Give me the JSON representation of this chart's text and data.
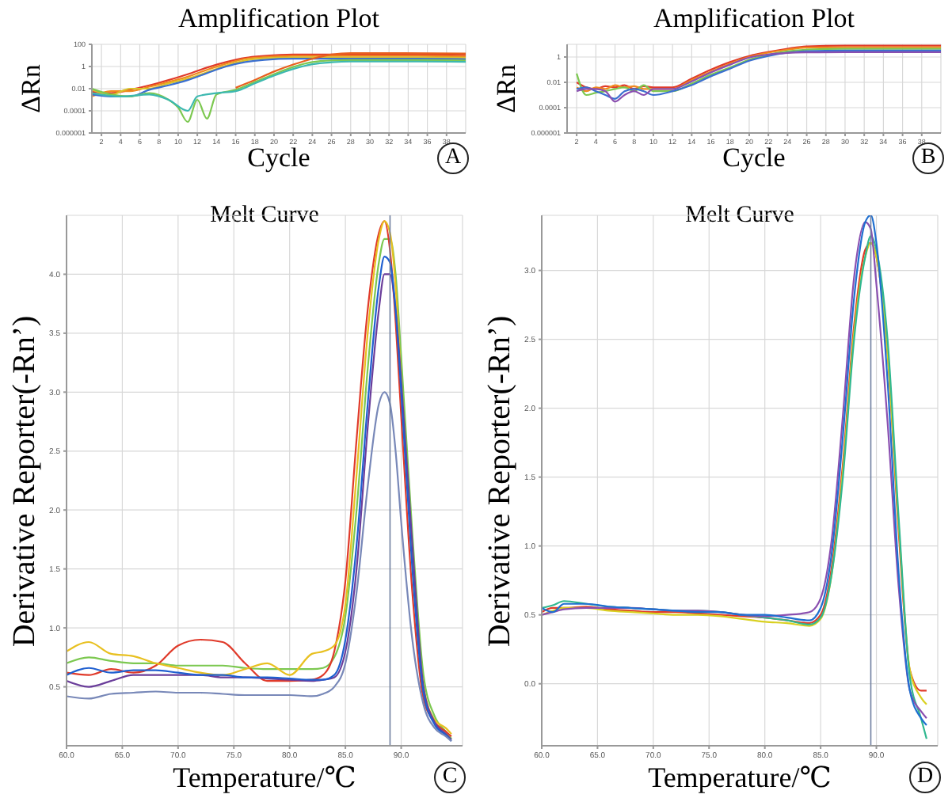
{
  "chart_data": [
    {
      "type": "line",
      "title": "Amplification Plot",
      "xlabel": "Cycle",
      "ylabel": "ΔRn",
      "annotations": [
        "A"
      ],
      "log": "y",
      "grid": true,
      "xlim": [
        1,
        40
      ],
      "xticks": [
        2,
        4,
        6,
        8,
        10,
        12,
        14,
        16,
        18,
        20,
        22,
        24,
        26,
        28,
        30,
        32,
        34,
        36,
        38
      ],
      "ylim": [
        1e-06,
        100
      ],
      "yticks": [
        {
          "value": 1e-06,
          "label": "0.000001"
        },
        0.0001,
        0.01,
        1,
        100
      ],
      "series": [
        {
          "color": "#e03a2a",
          "x": [
            1,
            3,
            5,
            7,
            9,
            11,
            13,
            15,
            17,
            19,
            22,
            26,
            30,
            35,
            40
          ],
          "values": [
            0.005,
            0.004,
            0.008,
            0.02,
            0.06,
            0.2,
            0.8,
            2.5,
            6,
            9,
            12,
            12,
            12,
            12,
            11
          ]
        },
        {
          "color": "#f08a1e",
          "x": [
            1,
            3,
            5,
            7,
            9,
            11,
            13,
            15,
            17,
            19,
            22,
            26,
            30,
            35,
            40
          ],
          "values": [
            0.002,
            0.006,
            0.006,
            0.015,
            0.04,
            0.12,
            0.5,
            1.8,
            5,
            7,
            9,
            9,
            9,
            9,
            8
          ]
        },
        {
          "color": "#d9c22a",
          "x": [
            1,
            3,
            5,
            7,
            9,
            11,
            13,
            15,
            17,
            19,
            22,
            26,
            30,
            35,
            40
          ],
          "values": [
            0.008,
            0.003,
            0.01,
            0.01,
            0.03,
            0.08,
            0.3,
            1.2,
            3.5,
            5.5,
            6.5,
            6.5,
            6.5,
            6.5,
            6
          ]
        },
        {
          "color": "#3a6fd0",
          "x": [
            1,
            3,
            5,
            7,
            9,
            11,
            13,
            15,
            17,
            19,
            22,
            26,
            30,
            35,
            40
          ],
          "values": [
            0.003,
            0.002,
            0.002,
            0.008,
            0.02,
            0.06,
            0.25,
            1,
            2.5,
            4,
            5,
            5,
            5,
            5,
            4.5
          ]
        },
        {
          "color": "#7cc850",
          "x": [
            1,
            3,
            5,
            7,
            9,
            10,
            11,
            12,
            13,
            14,
            16,
            18,
            20,
            22,
            24,
            26,
            28,
            32,
            36,
            40
          ],
          "values": [
            0.01,
            0.003,
            0.002,
            0.004,
            0.001,
            0.0002,
            1e-05,
            0.001,
            2e-05,
            0.003,
            0.008,
            0.04,
            0.2,
            0.9,
            2.5,
            3.5,
            3.8,
            3.8,
            3.8,
            3.5
          ]
        },
        {
          "color": "#3cb8b0",
          "x": [
            1,
            4,
            7,
            9,
            11,
            12,
            14,
            16,
            18,
            20,
            22,
            24,
            26,
            28,
            30,
            35,
            40
          ],
          "values": [
            0.004,
            0.002,
            0.003,
            0.001,
            0.0001,
            0.002,
            0.004,
            0.006,
            0.03,
            0.15,
            0.6,
            1.6,
            2.4,
            2.8,
            2.8,
            2.8,
            2.6
          ]
        },
        {
          "color": "#e8601e",
          "x": [
            16,
            18,
            20,
            22,
            24,
            26,
            28,
            32,
            40
          ],
          "values": [
            0.012,
            0.06,
            0.35,
            1.5,
            5,
            12,
            16,
            16,
            15
          ]
        }
      ]
    },
    {
      "type": "line",
      "title": "Amplification Plot",
      "xlabel": "Cycle",
      "ylabel": "ΔRn",
      "annotations": [
        "B"
      ],
      "log": "y",
      "grid": true,
      "xlim": [
        1,
        40
      ],
      "xticks": [
        2,
        4,
        6,
        8,
        10,
        12,
        14,
        16,
        18,
        20,
        22,
        24,
        26,
        28,
        30,
        32,
        34,
        36,
        38
      ],
      "ylim": [
        1e-06,
        10
      ],
      "yticks": [
        {
          "value": 1e-06,
          "label": "0.000001"
        },
        0.0001,
        0.01,
        1
      ],
      "x": [
        2,
        3,
        4,
        5,
        6,
        7,
        8,
        9,
        10,
        12,
        14,
        16,
        18,
        20,
        22,
        24,
        26,
        30,
        35,
        40
      ],
      "series": [
        {
          "color": "#e03a2a",
          "values": [
            0.01,
            0.004,
            0.003,
            0.005,
            0.004,
            0.006,
            0.003,
            0.005,
            0.004,
            0.004,
            0.02,
            0.1,
            0.4,
            1.2,
            2.5,
            4.5,
            7,
            8,
            8,
            8
          ]
        },
        {
          "color": "#f08a1e",
          "values": [
            0.004,
            0.002,
            0.004,
            0.003,
            0.006,
            0.004,
            0.005,
            0.003,
            0.003,
            0.003,
            0.015,
            0.07,
            0.3,
            1,
            2.2,
            3.8,
            5.5,
            6,
            6,
            6
          ]
        },
        {
          "color": "#7cc850",
          "values": [
            0.05,
            0.001,
            0.0015,
            0.002,
            0.003,
            0.004,
            0.002,
            0.006,
            0.002,
            0.002,
            0.008,
            0.04,
            0.15,
            0.6,
            1.5,
            2.8,
            3.8,
            4.4,
            4.4,
            4.4
          ]
        },
        {
          "color": "#3a6fd0",
          "values": [
            0.003,
            0.004,
            0.002,
            0.001,
            0.0005,
            0.002,
            0.003,
            0.002,
            0.001,
            0.002,
            0.006,
            0.03,
            0.12,
            0.5,
            1.2,
            2.2,
            2.9,
            3.2,
            3.2,
            3.2
          ]
        },
        {
          "color": "#8a4fb0",
          "values": [
            0.002,
            0.003,
            0.003,
            0.002,
            0.0003,
            0.001,
            0.002,
            0.001,
            0.003,
            0.003,
            0.012,
            0.06,
            0.25,
            0.9,
            1.6,
            2.1,
            2.3,
            2.4,
            2.4,
            2.4
          ]
        }
      ]
    },
    {
      "type": "line",
      "title": "Melt Curve",
      "xlabel": "Temperature/℃",
      "ylabel": "Derivative Reporter(-Rn’)",
      "annotations": [
        "C"
      ],
      "grid": true,
      "xlim": [
        60,
        95.5
      ],
      "xticks": [
        {
          "value": 60,
          "label": "60.0"
        },
        {
          "value": 65,
          "label": "65.0"
        },
        {
          "value": 70,
          "label": "70.0"
        },
        {
          "value": 75,
          "label": "75.0"
        },
        {
          "value": 80,
          "label": "80.0"
        },
        {
          "value": 85,
          "label": "85.0"
        },
        {
          "value": 90,
          "label": "90.0"
        }
      ],
      "ylim": [
        0,
        4.5
      ],
      "yticks": [
        {
          "value": 0.5,
          "label": "0.5"
        },
        {
          "value": 1,
          "label": "1.0"
        },
        {
          "value": 1.5,
          "label": "1.5"
        },
        {
          "value": 2,
          "label": "2.0"
        },
        {
          "value": 2.5,
          "label": "2.5"
        },
        {
          "value": 3,
          "label": "3.0"
        },
        {
          "value": 3.5,
          "label": "3.5"
        },
        {
          "value": 4,
          "label": "4.0"
        }
      ],
      "ref_lines": [
        {
          "axis": "x",
          "value": 89,
          "color": "#7080a0"
        }
      ],
      "x": [
        60,
        62,
        64,
        66,
        68,
        70,
        72,
        74,
        76,
        78,
        80,
        82,
        83,
        84,
        85,
        86,
        87,
        88,
        88.5,
        89,
        89.5,
        90,
        91,
        92,
        93,
        94,
        94.5
      ],
      "series": [
        {
          "color": "#7cc850",
          "values": [
            0.7,
            0.75,
            0.72,
            0.7,
            0.7,
            0.68,
            0.68,
            0.68,
            0.66,
            0.65,
            0.65,
            0.65,
            0.66,
            0.75,
            1.1,
            2.0,
            3.2,
            4.1,
            4.3,
            4.3,
            4.0,
            3.3,
            1.8,
            0.6,
            0.25,
            0.12,
            0.06
          ]
        },
        {
          "color": "#e03a2a",
          "values": [
            0.62,
            0.6,
            0.65,
            0.62,
            0.68,
            0.85,
            0.9,
            0.88,
            0.7,
            0.55,
            0.55,
            0.56,
            0.6,
            0.8,
            1.4,
            2.6,
            3.7,
            4.35,
            4.45,
            4.2,
            3.6,
            2.8,
            1.3,
            0.4,
            0.2,
            0.12,
            0.08
          ]
        },
        {
          "color": "#e8c020",
          "values": [
            0.8,
            0.88,
            0.78,
            0.76,
            0.7,
            0.66,
            0.62,
            0.6,
            0.65,
            0.7,
            0.6,
            0.78,
            0.8,
            0.85,
            1.2,
            2.3,
            3.5,
            4.3,
            4.45,
            4.35,
            3.9,
            3.1,
            1.6,
            0.5,
            0.22,
            0.15,
            0.1
          ]
        },
        {
          "color": "#6a3d9a",
          "values": [
            0.55,
            0.5,
            0.55,
            0.6,
            0.6,
            0.6,
            0.6,
            0.58,
            0.58,
            0.57,
            0.56,
            0.55,
            0.56,
            0.58,
            0.8,
            1.5,
            2.7,
            3.7,
            4.0,
            4.0,
            3.7,
            3.1,
            1.7,
            0.5,
            0.2,
            0.1,
            0.05
          ]
        },
        {
          "color": "#1f5fd0",
          "values": [
            0.6,
            0.66,
            0.62,
            0.64,
            0.64,
            0.62,
            0.6,
            0.6,
            0.58,
            0.58,
            0.57,
            0.56,
            0.56,
            0.6,
            0.9,
            1.7,
            2.9,
            3.9,
            4.15,
            4.1,
            3.7,
            3.0,
            1.5,
            0.45,
            0.18,
            0.09,
            0.04
          ]
        },
        {
          "color": "#7888b8",
          "values": [
            0.42,
            0.4,
            0.44,
            0.45,
            0.46,
            0.45,
            0.45,
            0.44,
            0.43,
            0.43,
            0.43,
            0.42,
            0.44,
            0.5,
            0.7,
            1.3,
            2.2,
            2.9,
            3.0,
            2.9,
            2.5,
            1.9,
            0.9,
            0.35,
            0.15,
            0.08,
            0.04
          ]
        }
      ]
    },
    {
      "type": "line",
      "title": "Melt Curve",
      "xlabel": "Temperature/℃",
      "ylabel": "Derivative Reporter(-Rn’)",
      "annotations": [
        "D"
      ],
      "grid": true,
      "xlim": [
        60,
        95.5
      ],
      "xticks": [
        {
          "value": 60,
          "label": "60.0"
        },
        {
          "value": 65,
          "label": "65.0"
        },
        {
          "value": 70,
          "label": "70.0"
        },
        {
          "value": 75,
          "label": "75.0"
        },
        {
          "value": 80,
          "label": "80.0"
        },
        {
          "value": 85,
          "label": "85.0"
        },
        {
          "value": 90,
          "label": "90.0"
        }
      ],
      "ylim": [
        -0.45,
        3.4
      ],
      "yticks": [
        {
          "value": 0,
          "label": "0.0"
        },
        {
          "value": 0.5,
          "label": "0.5"
        },
        {
          "value": 1,
          "label": "1.0"
        },
        {
          "value": 1.5,
          "label": "1.5"
        },
        {
          "value": 2,
          "label": "2.0"
        },
        {
          "value": 2.5,
          "label": "2.5"
        },
        {
          "value": 3,
          "label": "3.0"
        }
      ],
      "ref_lines": [
        {
          "axis": "x",
          "value": 89.5,
          "color": "#7080a0"
        }
      ],
      "x": [
        60,
        61,
        62,
        64,
        66,
        68,
        70,
        72,
        74,
        76,
        78,
        80,
        82,
        84,
        85,
        86,
        87,
        88,
        89,
        89.5,
        90,
        91,
        92,
        93,
        94,
        94.5
      ],
      "series": [
        {
          "color": "#e03a2a",
          "values": [
            0.52,
            0.55,
            0.55,
            0.56,
            0.54,
            0.53,
            0.52,
            0.52,
            0.51,
            0.5,
            0.49,
            0.48,
            0.46,
            0.44,
            0.5,
            0.85,
            1.6,
            2.6,
            3.15,
            3.2,
            3.1,
            2.4,
            1.1,
            0.1,
            -0.05,
            -0.05
          ]
        },
        {
          "color": "#d9d020",
          "values": [
            0.5,
            0.53,
            0.55,
            0.55,
            0.53,
            0.52,
            0.51,
            0.5,
            0.5,
            0.49,
            0.47,
            0.45,
            0.44,
            0.42,
            0.47,
            0.8,
            1.55,
            2.55,
            3.1,
            3.2,
            3.1,
            2.4,
            1.15,
            0.1,
            -0.1,
            -0.15
          ]
        },
        {
          "color": "#30b890",
          "values": [
            0.55,
            0.57,
            0.6,
            0.58,
            0.56,
            0.55,
            0.54,
            0.53,
            0.53,
            0.52,
            0.5,
            0.48,
            0.46,
            0.43,
            0.48,
            0.8,
            1.5,
            2.5,
            3.1,
            3.25,
            3.15,
            2.5,
            1.2,
            0.05,
            -0.25,
            -0.4
          ]
        },
        {
          "color": "#8a4fb0",
          "values": [
            0.5,
            0.52,
            0.54,
            0.55,
            0.55,
            0.55,
            0.54,
            0.53,
            0.53,
            0.52,
            0.5,
            0.49,
            0.5,
            0.52,
            0.62,
            1.05,
            1.95,
            2.95,
            3.35,
            3.3,
            2.9,
            1.9,
            0.7,
            -0.05,
            -0.2,
            -0.25
          ]
        },
        {
          "color": "#1f6fd0",
          "values": [
            0.55,
            0.52,
            0.58,
            0.58,
            0.56,
            0.55,
            0.54,
            0.53,
            0.52,
            0.52,
            0.5,
            0.5,
            0.48,
            0.46,
            0.55,
            0.95,
            1.8,
            2.8,
            3.35,
            3.4,
            3.2,
            2.2,
            0.8,
            -0.05,
            -0.25,
            -0.3
          ]
        }
      ]
    }
  ]
}
